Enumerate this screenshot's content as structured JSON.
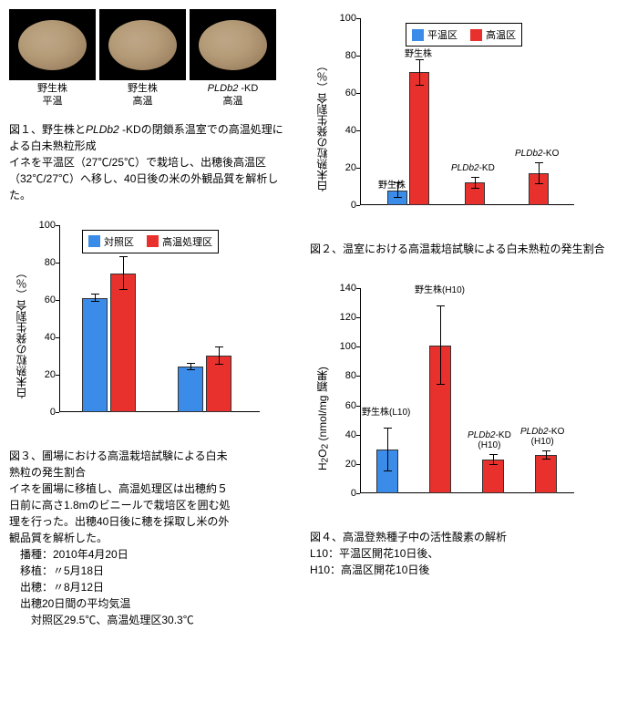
{
  "colors": {
    "blue": "#3b8ce8",
    "red": "#e8302c"
  },
  "photos": {
    "items": [
      {
        "line1": "野生株",
        "line2": "平温"
      },
      {
        "line1": "野生株",
        "line2": "高温"
      },
      {
        "line1_html": "<i>PLDb2</i> -KD",
        "line2": "高温"
      }
    ]
  },
  "fig1": {
    "title": "図１、野生株と",
    "title_mid_html": "<i>PLDb2</i> -KD",
    "title_end": "の閉鎖系温室での高温処理による白未熟粒形成",
    "body": "イネを平温区（27℃/25℃）で栽培し、出穂後高温区（32℃/27℃）へ移し、40日後の米の外観品質を解析した。"
  },
  "chart2": {
    "type": "bar",
    "ylabel": "白未熟粒の発生割合（％）",
    "ylim": [
      0,
      100
    ],
    "ytick_step": 20,
    "legend": {
      "a": "平温区",
      "b": "高温区"
    },
    "groups": [
      {
        "label": "野生株",
        "a": 8,
        "a_err": 4,
        "b": 71,
        "b_err": 7
      },
      {
        "label_html": "<i>PLDb2</i>-KD",
        "a": null,
        "b": 12,
        "b_err": 3
      },
      {
        "label_html": "<i>PLDb2</i>-KO",
        "a": null,
        "b": 17,
        "b_err": 6
      }
    ],
    "caption": "図２、温室における高温栽培試験による白未熟粒の発生割合"
  },
  "chart3": {
    "type": "bar",
    "ylabel": "白未熟粒の発生割合（％）",
    "ylim": [
      0,
      100
    ],
    "ytick_step": 20,
    "legend": {
      "a": "対照区",
      "b": "高温処理区"
    },
    "groups": [
      {
        "a": 61,
        "a_err": 2,
        "b": 74,
        "b_err": 9
      },
      {
        "a": 24,
        "a_err": 2,
        "b": 30,
        "b_err": 5
      }
    ],
    "caption": "図３、圃場における高温栽培試験による白未熟粒の発生割合",
    "body": "イネを圃場に移植し、高温処理区は出穂約５日前に高さ1.8mのビニールで栽培区を囲む処理を行った。出穂40日後に穂を採取し米の外観品質を解析した。",
    "details": {
      "l1": "播種：2010年4月20日",
      "l2": "移植：〃5月18日",
      "l3": "出穂：〃8月12日",
      "l4": "出穂20日間の平均気温",
      "l5": "対照区29.5℃、高温処理区30.3℃"
    }
  },
  "chart4": {
    "type": "bar",
    "ylabel_html": "H<sub>2</sub>O<sub>2</sub> (nmol/mg 穎果)",
    "ylim": [
      0,
      140
    ],
    "ytick_step": 20,
    "groups": [
      {
        "label": "野生株(L10)",
        "val": 30,
        "err": 15,
        "color": "blue"
      },
      {
        "label": "野生株(H10)",
        "val": 101,
        "err": 27,
        "color": "red"
      },
      {
        "label_html": "<i>PLDb2</i>-KD<br>(H10)",
        "val": 23,
        "err": 4,
        "color": "red"
      },
      {
        "label_html": "<i>PLDb2</i>-KO<br>(H10)",
        "val": 26,
        "err": 3,
        "color": "red"
      }
    ],
    "caption": "図４、高温登熟種子中の活性酸素の解析",
    "note1": "L10：平温区開花10日後、",
    "note2": "H10：高温区開花10日後"
  }
}
